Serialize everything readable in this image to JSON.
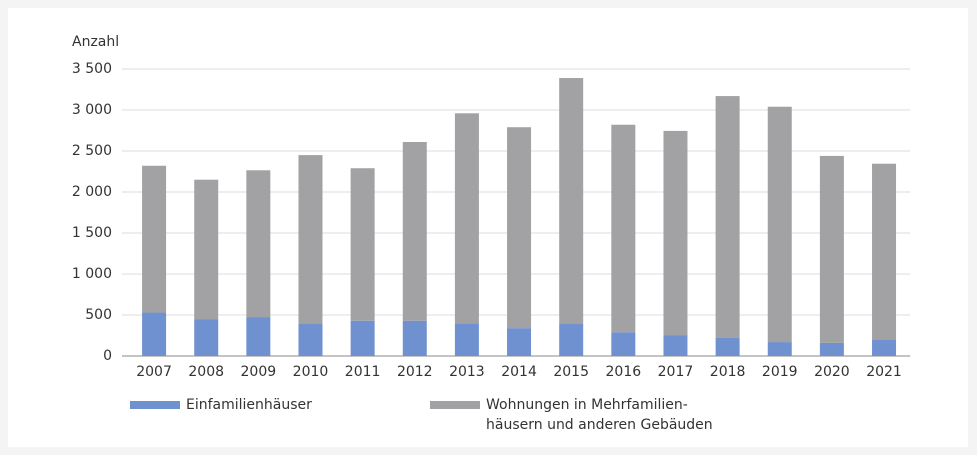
{
  "chart_data": {
    "type": "stacked_bar",
    "y_label": "Anzahl",
    "categories": [
      "2007",
      "2008",
      "2009",
      "2010",
      "2011",
      "2012",
      "2013",
      "2014",
      "2015",
      "2016",
      "2017",
      "2018",
      "2019",
      "2020",
      "2021"
    ],
    "series": [
      {
        "name": "Einfamilienhäuser",
        "color": "#7091cf",
        "values": [
          530,
          450,
          475,
          390,
          430,
          430,
          400,
          340,
          390,
          290,
          255,
          220,
          170,
          160,
          195
        ]
      },
      {
        "name": "Wohnungen in Mehrfamilien-\nhäusern und anderen Gebäuden",
        "color": "#a2a2a4",
        "values": [
          1790,
          1700,
          1790,
          2060,
          1860,
          2180,
          2560,
          2450,
          3000,
          2530,
          2490,
          2950,
          2870,
          2280,
          2150
        ]
      }
    ],
    "ylim": [
      0,
      3500
    ],
    "yticks": [
      0,
      500,
      {
        "value": 1000,
        "label": "1 000"
      },
      {
        "value": 1500,
        "label": "1 500"
      },
      {
        "value": 2000,
        "label": "2 000"
      },
      {
        "value": 2500,
        "label": "2 500"
      },
      {
        "value": 3000,
        "label": "3 000"
      },
      {
        "value": 3500,
        "label": "3 500"
      }
    ],
    "grid": true
  }
}
